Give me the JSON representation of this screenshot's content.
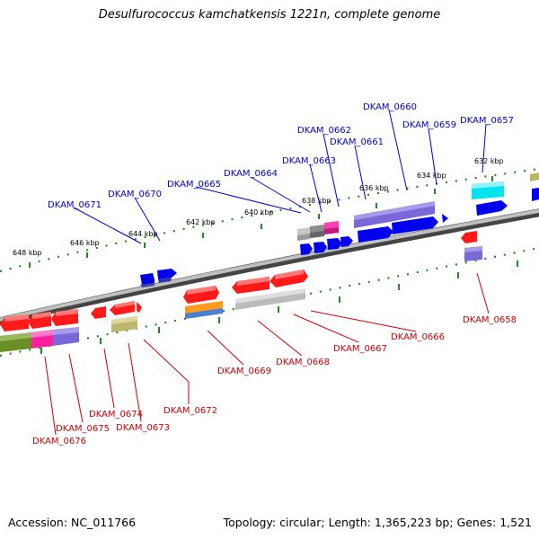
{
  "title": "Desulfurococcus kamchatkensis 1221n, complete genome",
  "footer": {
    "accession": "Accession: NC_011766",
    "summary": "Topology: circular; Length: 1,365,223 bp; Genes: 1,521"
  },
  "scale_labels": [
    "648 kbp",
    "646 kbp",
    "644 kbp",
    "642 kbp",
    "640 kbp",
    "638 kbp",
    "636 kbp",
    "634 kbp",
    "632 kbp"
  ],
  "top_genes": [
    "DKAM_0671",
    "DKAM_0670",
    "DKAM_0665",
    "DKAM_0664",
    "DKAM_0663",
    "DKAM_0662",
    "DKAM_0661",
    "DKAM_0660",
    "DKAM_0659",
    "DKAM_0657"
  ],
  "bottom_genes": [
    "DKAM_0676",
    "DKAM_0675",
    "DKAM_0674",
    "DKAM_0673",
    "DKAM_0672",
    "DKAM_0669",
    "DKAM_0668",
    "DKAM_0667",
    "DKAM_0666",
    "DKAM_0658"
  ],
  "colors": {
    "forward_strand": "#0000ff",
    "reverse_strand": "#ff0000",
    "backbone": "#888888",
    "scale_ticks": "#228822",
    "purple": "#7b68d8",
    "cyan": "#00e5ee",
    "magenta": "#ff1ea0",
    "olive": "#6b8e23",
    "khaki": "#bdb76b",
    "orange": "#ff9a1a",
    "grey": "#bbbbbb"
  }
}
